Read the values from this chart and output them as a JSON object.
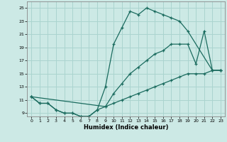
{
  "xlabel": "Humidex (Indice chaleur)",
  "bg_color": "#cce9e5",
  "grid_color": "#aad4cf",
  "line_color": "#1a6b5e",
  "line1_x": [
    0,
    1,
    2,
    3,
    4,
    5,
    6,
    7,
    8,
    9,
    10,
    11,
    12,
    13,
    14,
    15,
    16,
    17,
    18,
    19,
    22,
    23
  ],
  "line1_y": [
    11.5,
    10.5,
    10.5,
    9.5,
    9.0,
    9.0,
    8.5,
    8.5,
    9.5,
    13.0,
    19.5,
    22.0,
    24.5,
    24.0,
    25.0,
    24.5,
    24.0,
    23.5,
    23.0,
    21.5,
    15.5,
    15.5
  ],
  "line2_x": [
    0,
    1,
    2,
    3,
    4,
    5,
    6,
    7,
    8,
    9,
    10,
    11,
    12,
    13,
    14,
    15,
    16,
    17,
    18,
    19,
    20,
    21,
    22,
    23
  ],
  "line2_y": [
    11.5,
    10.5,
    10.5,
    9.5,
    9.0,
    9.0,
    8.5,
    8.5,
    9.5,
    10.0,
    10.5,
    11.0,
    11.5,
    12.0,
    12.5,
    13.0,
    13.5,
    14.0,
    14.5,
    15.0,
    15.0,
    15.0,
    15.5,
    15.5
  ],
  "line3_x": [
    0,
    9,
    10,
    11,
    12,
    13,
    14,
    15,
    16,
    17,
    18,
    19,
    20,
    21,
    22,
    23
  ],
  "line3_y": [
    11.5,
    10.0,
    12.0,
    13.5,
    15.0,
    16.0,
    17.0,
    18.0,
    18.5,
    19.5,
    19.5,
    19.5,
    16.5,
    21.5,
    15.5,
    15.5
  ],
  "xlim": [
    0,
    23
  ],
  "ylim": [
    8.5,
    26.0
  ],
  "yticks": [
    9,
    11,
    13,
    15,
    17,
    19,
    21,
    23,
    25
  ],
  "xticks": [
    0,
    1,
    2,
    3,
    4,
    5,
    6,
    7,
    8,
    9,
    10,
    11,
    12,
    13,
    14,
    15,
    16,
    17,
    18,
    19,
    20,
    21,
    22,
    23
  ]
}
